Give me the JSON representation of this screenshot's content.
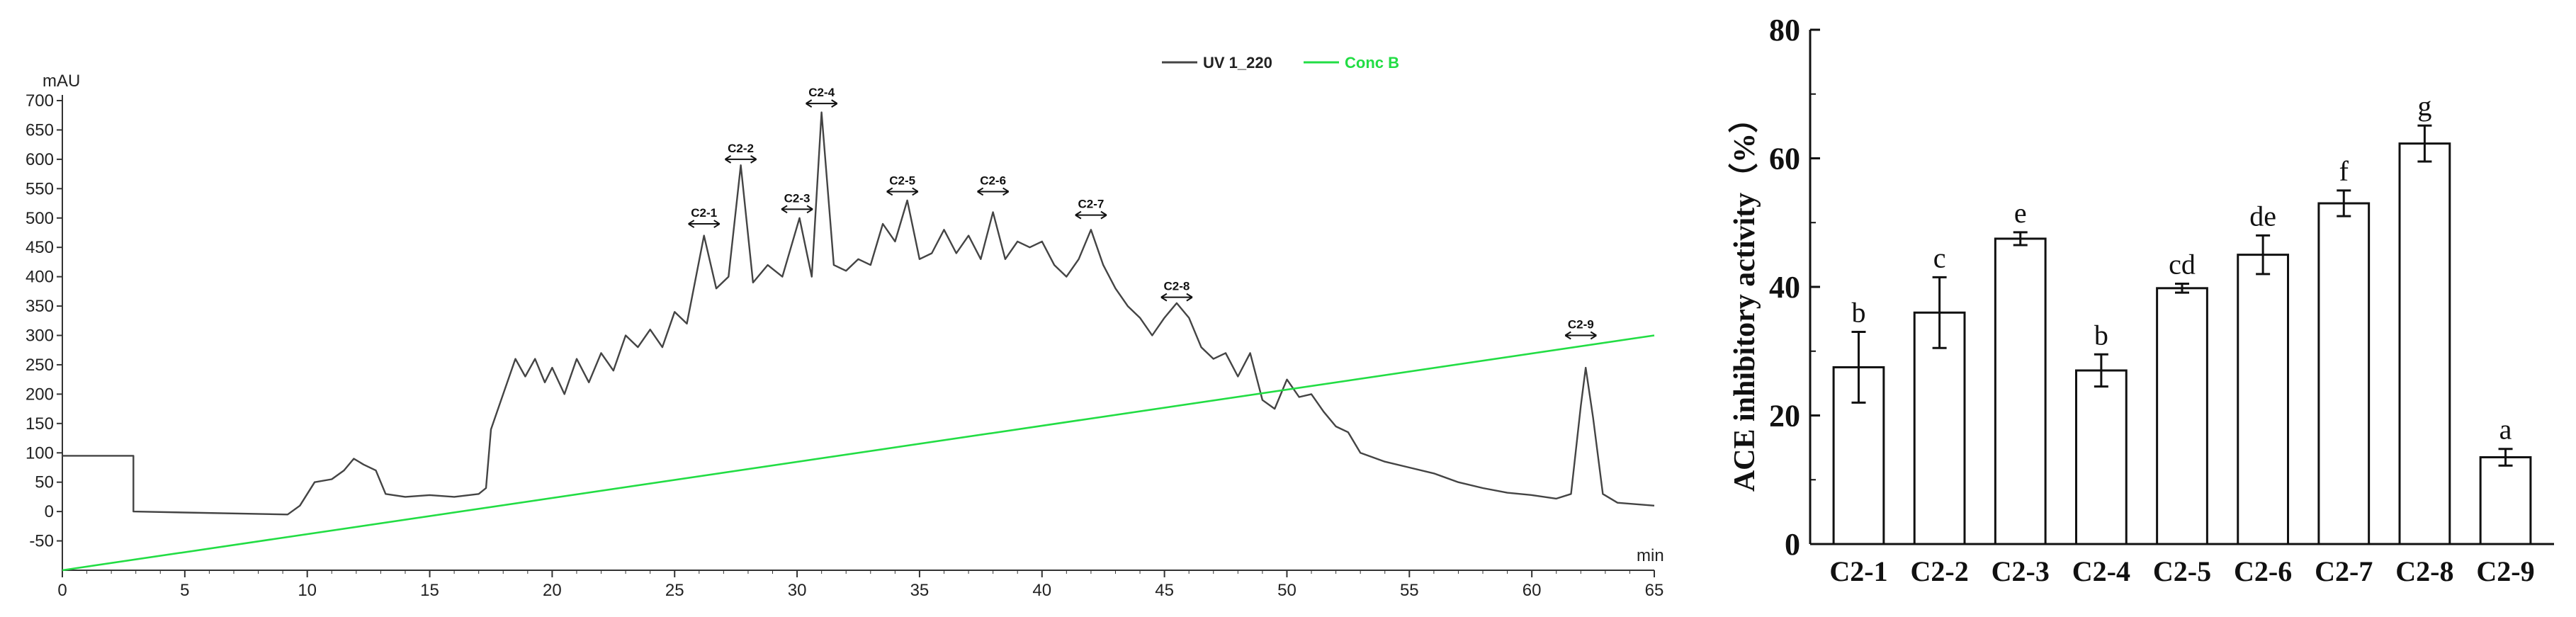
{
  "chart_data": [
    {
      "type": "line",
      "xlabel": "min",
      "ylabel": "mAU",
      "xlim": [
        0,
        65
      ],
      "ylim": [
        -100,
        700
      ],
      "xticks": [
        0,
        5,
        10,
        15,
        20,
        25,
        30,
        35,
        40,
        45,
        50,
        55,
        60,
        65
      ],
      "yticks": [
        -50,
        0,
        50,
        100,
        150,
        200,
        250,
        300,
        350,
        400,
        450,
        500,
        550,
        600,
        650,
        700
      ],
      "legend_position": "top-right",
      "series": [
        {
          "name": "UV 1_220",
          "color": "#444444",
          "points": [
            [
              0,
              95
            ],
            [
              2.9,
              95
            ],
            [
              2.9,
              0
            ],
            [
              9.2,
              -5
            ],
            [
              9.7,
              10
            ],
            [
              10.3,
              50
            ],
            [
              11.0,
              55
            ],
            [
              11.5,
              70
            ],
            [
              11.9,
              90
            ],
            [
              12.3,
              80
            ],
            [
              12.8,
              70
            ],
            [
              13.2,
              30
            ],
            [
              14.0,
              25
            ],
            [
              15.0,
              28
            ],
            [
              16.0,
              25
            ],
            [
              17.0,
              30
            ],
            [
              17.3,
              40
            ],
            [
              17.5,
              140
            ],
            [
              18.0,
              200
            ],
            [
              18.5,
              260
            ],
            [
              18.9,
              230
            ],
            [
              19.3,
              260
            ],
            [
              19.7,
              220
            ],
            [
              20.0,
              245
            ],
            [
              20.5,
              200
            ],
            [
              21.0,
              260
            ],
            [
              21.5,
              220
            ],
            [
              22.0,
              270
            ],
            [
              22.5,
              240
            ],
            [
              23.0,
              300
            ],
            [
              23.5,
              280
            ],
            [
              24.0,
              310
            ],
            [
              24.5,
              280
            ],
            [
              25.0,
              340
            ],
            [
              25.5,
              320
            ],
            [
              26.2,
              470
            ],
            [
              26.7,
              380
            ],
            [
              27.2,
              400
            ],
            [
              27.7,
              590
            ],
            [
              28.2,
              390
            ],
            [
              28.8,
              420
            ],
            [
              29.4,
              400
            ],
            [
              30.1,
              500
            ],
            [
              30.6,
              400
            ],
            [
              31.0,
              680
            ],
            [
              31.5,
              420
            ],
            [
              32.0,
              410
            ],
            [
              32.5,
              430
            ],
            [
              33.0,
              420
            ],
            [
              33.5,
              490
            ],
            [
              34.0,
              460
            ],
            [
              34.5,
              530
            ],
            [
              35.0,
              430
            ],
            [
              35.5,
              440
            ],
            [
              36.0,
              480
            ],
            [
              36.5,
              440
            ],
            [
              37.0,
              470
            ],
            [
              37.5,
              430
            ],
            [
              38.0,
              510
            ],
            [
              38.5,
              430
            ],
            [
              39.0,
              460
            ],
            [
              39.5,
              450
            ],
            [
              40.0,
              460
            ],
            [
              40.5,
              420
            ],
            [
              41.0,
              400
            ],
            [
              41.5,
              430
            ],
            [
              42.0,
              480
            ],
            [
              42.5,
              420
            ],
            [
              43.0,
              380
            ],
            [
              43.5,
              350
            ],
            [
              44.0,
              330
            ],
            [
              44.5,
              300
            ],
            [
              45.0,
              330
            ],
            [
              45.5,
              355
            ],
            [
              46.0,
              330
            ],
            [
              46.5,
              280
            ],
            [
              47.0,
              260
            ],
            [
              47.5,
              270
            ],
            [
              48.0,
              230
            ],
            [
              48.5,
              270
            ],
            [
              49.0,
              190
            ],
            [
              49.5,
              175
            ],
            [
              50.0,
              225
            ],
            [
              50.5,
              195
            ],
            [
              51.0,
              200
            ],
            [
              51.5,
              170
            ],
            [
              52.0,
              145
            ],
            [
              52.5,
              135
            ],
            [
              53.0,
              100
            ],
            [
              54.0,
              85
            ],
            [
              55.0,
              75
            ],
            [
              56.0,
              65
            ],
            [
              57.0,
              50
            ],
            [
              58.0,
              40
            ],
            [
              59.0,
              32
            ],
            [
              60.0,
              28
            ],
            [
              61.0,
              22
            ],
            [
              61.6,
              30
            ],
            [
              62.0,
              180
            ],
            [
              62.2,
              245
            ],
            [
              62.5,
              160
            ],
            [
              62.9,
              30
            ],
            [
              63.5,
              15
            ],
            [
              65.0,
              10
            ]
          ]
        },
        {
          "name": "Conc B",
          "color": "#22dd44",
          "points": [
            [
              0,
              -100
            ],
            [
              65,
              300
            ]
          ]
        }
      ],
      "fractions": [
        {
          "label": "C2-1",
          "x": 26.2,
          "y": 490
        },
        {
          "label": "C2-2",
          "x": 27.7,
          "y": 600
        },
        {
          "label": "C2-3",
          "x": 30.0,
          "y": 515
        },
        {
          "label": "C2-4",
          "x": 31.0,
          "y": 695
        },
        {
          "label": "C2-5",
          "x": 34.3,
          "y": 545
        },
        {
          "label": "C2-6",
          "x": 38.0,
          "y": 545
        },
        {
          "label": "C2-7",
          "x": 42.0,
          "y": 505
        },
        {
          "label": "C2-8",
          "x": 45.5,
          "y": 365
        },
        {
          "label": "C2-9",
          "x": 62.0,
          "y": 300
        }
      ]
    },
    {
      "type": "bar",
      "ylabel": "ACE inhibitory activity（%）",
      "xlabel": "",
      "ylim": [
        0,
        80
      ],
      "yticks": [
        0,
        20,
        40,
        60,
        80
      ],
      "categories": [
        "C2-1",
        "C2-2",
        "C2-3",
        "C2-4",
        "C2-5",
        "C2-6",
        "C2-7",
        "C2-8",
        "C2-9"
      ],
      "values": [
        27.5,
        36.0,
        47.5,
        27.0,
        39.8,
        45.0,
        53.0,
        62.3,
        13.5
      ],
      "errors": [
        5.5,
        5.5,
        1.0,
        2.5,
        0.7,
        3.0,
        2.0,
        2.8,
        1.3
      ],
      "significance": [
        "b",
        "c",
        "e",
        "b",
        "cd",
        "de",
        "f",
        "g",
        "a"
      ],
      "bar_color": "#ffffff",
      "edge_color": "#111111"
    }
  ]
}
